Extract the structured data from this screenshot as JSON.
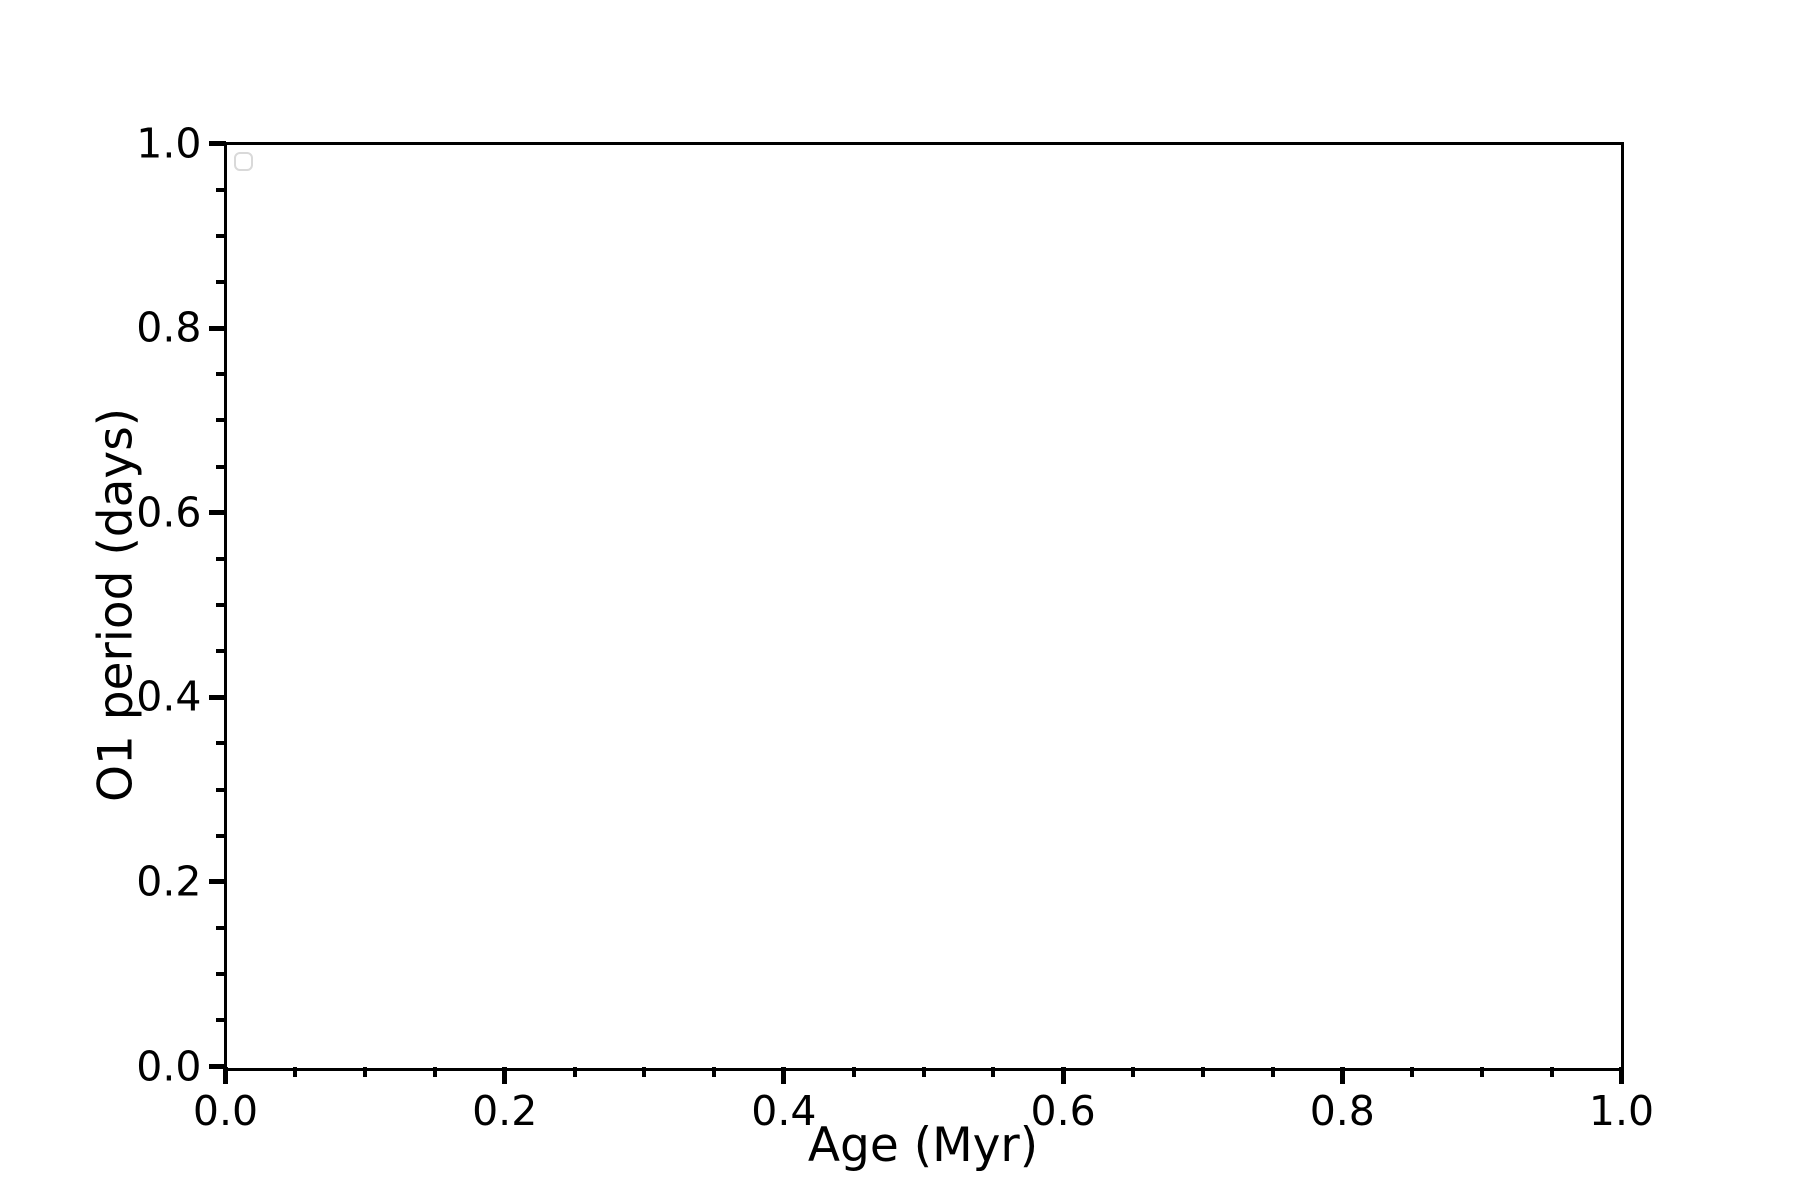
{
  "chart_data": {
    "type": "scatter",
    "title": "",
    "xlabel": "Age (Myr)",
    "ylabel": "O1 period (days)",
    "xlim": [
      0.0,
      1.0
    ],
    "ylim": [
      0.0,
      1.0
    ],
    "x_major_ticks": [
      0.0,
      0.2,
      0.4,
      0.6,
      0.8,
      1.0
    ],
    "x_tick_labels": [
      "0.0",
      "0.2",
      "0.4",
      "0.6",
      "0.8",
      "1.0"
    ],
    "y_major_ticks": [
      0.0,
      0.2,
      0.4,
      0.6,
      0.8,
      1.0
    ],
    "y_tick_labels": [
      "0.0",
      "0.2",
      "0.4",
      "0.6",
      "0.8",
      "1.0"
    ],
    "minor_tick_step": 0.05,
    "grid": false,
    "series": [],
    "legend": {
      "visible": true,
      "entries": [],
      "position": "upper left"
    }
  },
  "colors": {
    "background": "#ffffff",
    "axis": "#000000",
    "text": "#000000",
    "legend_border": "#d9d9d9"
  }
}
